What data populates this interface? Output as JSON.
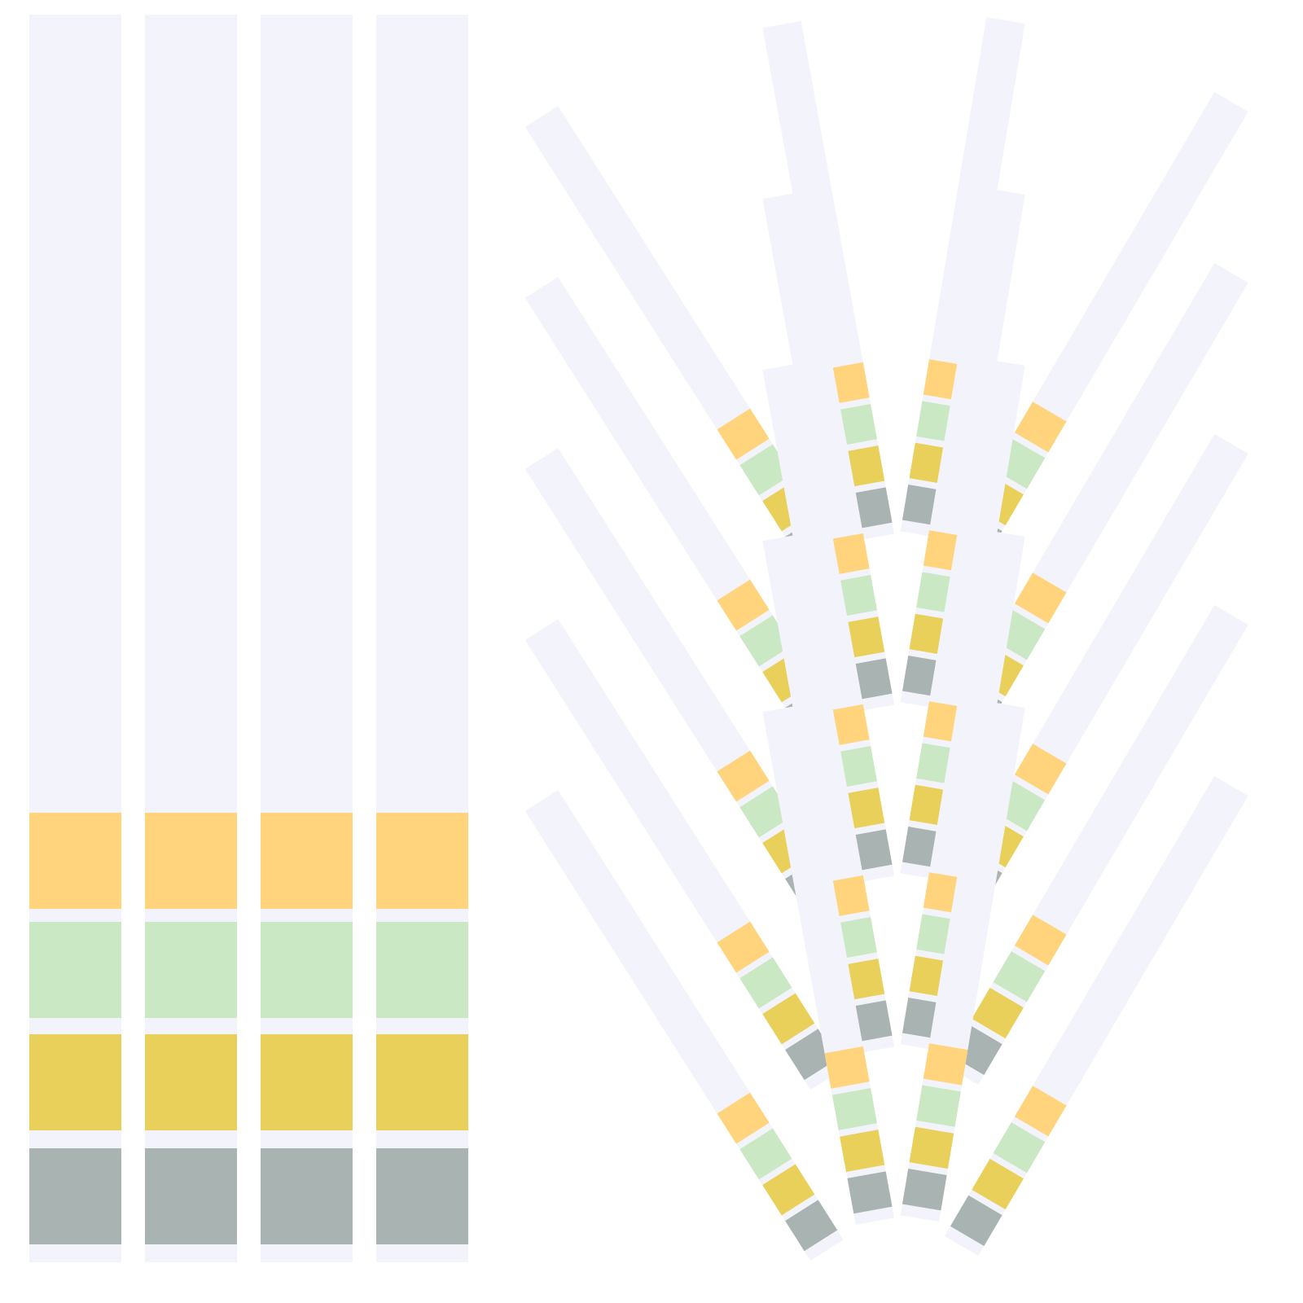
{
  "colors": {
    "background": "#ffffff",
    "strip": "#f3f3fb",
    "pads": [
      "#ffd47c",
      "#cbe8c4",
      "#e9d05a",
      "#a9b3b1"
    ]
  }
}
